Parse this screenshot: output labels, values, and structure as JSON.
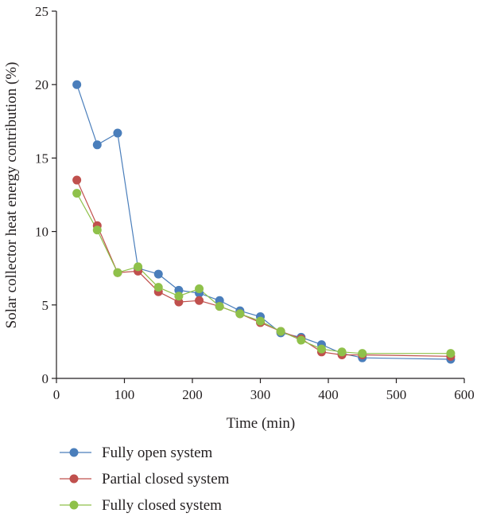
{
  "chart_data": {
    "type": "line",
    "xlabel": "Time (min)",
    "ylabel": "Solar collector heat energy contribution (%)",
    "xlim": [
      0,
      600
    ],
    "ylim": [
      0,
      25
    ],
    "xticks": [
      0,
      100,
      200,
      300,
      400,
      500,
      600
    ],
    "yticks": [
      0,
      5,
      10,
      15,
      20,
      25
    ],
    "grid": false,
    "legend_position": "bottom",
    "series": [
      {
        "name": "Fully open system",
        "color": "#4a7ebb",
        "x": [
          30,
          60,
          90,
          120,
          150,
          180,
          210,
          240,
          270,
          300,
          330,
          360,
          390,
          420,
          450,
          580
        ],
        "y": [
          20.0,
          15.9,
          16.7,
          7.5,
          7.1,
          6.0,
          5.8,
          5.3,
          4.6,
          4.2,
          3.1,
          2.8,
          2.3,
          1.7,
          1.4,
          1.3
        ]
      },
      {
        "name": "Partial closed system",
        "color": "#c0504d",
        "x": [
          30,
          60,
          90,
          120,
          150,
          180,
          210,
          240,
          270,
          300,
          330,
          360,
          390,
          420,
          450,
          580
        ],
        "y": [
          13.5,
          10.4,
          7.2,
          7.3,
          5.9,
          5.2,
          5.3,
          4.9,
          4.4,
          3.8,
          3.2,
          2.7,
          1.8,
          1.6,
          1.6,
          1.5
        ]
      },
      {
        "name": "Fully closed system",
        "color": "#8fc14a",
        "x": [
          30,
          60,
          90,
          120,
          150,
          180,
          210,
          240,
          270,
          300,
          330,
          360,
          390,
          420,
          450,
          580
        ],
        "y": [
          12.6,
          10.1,
          7.2,
          7.6,
          6.2,
          5.6,
          6.1,
          4.9,
          4.4,
          3.9,
          3.2,
          2.6,
          2.0,
          1.8,
          1.7,
          1.7
        ]
      }
    ]
  }
}
